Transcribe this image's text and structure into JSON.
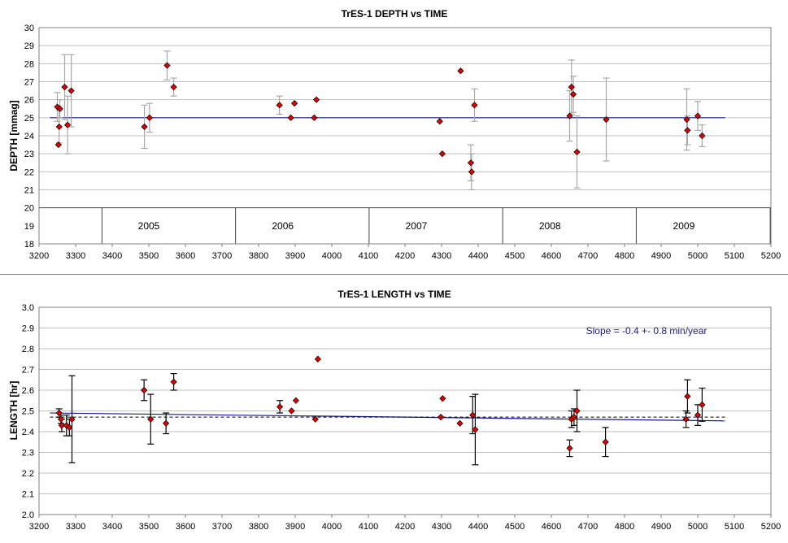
{
  "chart_data": [
    {
      "type": "scatter",
      "title": "TrES-1 DEPTH vs TIME",
      "ylabel": "DEPTH [mmag]",
      "xlim": [
        3200,
        5200
      ],
      "ylim": [
        18,
        30
      ],
      "xticks": [
        3200,
        3300,
        3400,
        3500,
        3600,
        3700,
        3800,
        3900,
        4000,
        4100,
        4200,
        4300,
        4400,
        4500,
        4600,
        4700,
        4800,
        4900,
        5000,
        5100,
        5200
      ],
      "yticks": [
        18,
        19,
        20,
        21,
        22,
        23,
        24,
        25,
        26,
        27,
        28,
        29,
        30
      ],
      "grid": true,
      "year_labels": [
        "2005",
        "2006",
        "2007",
        "2008",
        "2009"
      ],
      "year_label_x": [
        3500,
        3866,
        4231,
        4596,
        4962
      ],
      "year_dividers": [
        3372,
        3737,
        4102,
        4467,
        4832,
        5198
      ],
      "points": [
        {
          "x": 3250,
          "y": 25.6,
          "err": 0.8
        },
        {
          "x": 3253,
          "y": 23.5,
          "err": 0
        },
        {
          "x": 3255,
          "y": 24.5,
          "err": 0.9
        },
        {
          "x": 3257,
          "y": 25.5,
          "err": 0.5
        },
        {
          "x": 3270,
          "y": 26.7,
          "err": 1.8
        },
        {
          "x": 3278,
          "y": 24.6,
          "err": 1.6
        },
        {
          "x": 3288,
          "y": 26.5,
          "err": 2.0
        },
        {
          "x": 3488,
          "y": 24.5,
          "err": 1.2
        },
        {
          "x": 3502,
          "y": 25.0,
          "err": 0.8
        },
        {
          "x": 3550,
          "y": 27.9,
          "err": 0.8
        },
        {
          "x": 3568,
          "y": 26.7,
          "err": 0.5
        },
        {
          "x": 3857,
          "y": 25.7,
          "err": 0.5
        },
        {
          "x": 3888,
          "y": 25.0,
          "err": 0
        },
        {
          "x": 3898,
          "y": 25.8,
          "err": 0
        },
        {
          "x": 3952,
          "y": 25.0,
          "err": 0
        },
        {
          "x": 3958,
          "y": 26.0,
          "err": 0
        },
        {
          "x": 4295,
          "y": 24.8,
          "err": 0
        },
        {
          "x": 4302,
          "y": 23.0,
          "err": 0
        },
        {
          "x": 4352,
          "y": 27.6,
          "err": 0
        },
        {
          "x": 4380,
          "y": 22.5,
          "err": 1.0
        },
        {
          "x": 4382,
          "y": 22.0,
          "err": 1.0
        },
        {
          "x": 4390,
          "y": 25.7,
          "err": 0.9
        },
        {
          "x": 4650,
          "y": 25.1,
          "err": 1.4
        },
        {
          "x": 4655,
          "y": 26.7,
          "err": 1.5
        },
        {
          "x": 4660,
          "y": 26.3,
          "err": 1.0
        },
        {
          "x": 4670,
          "y": 23.1,
          "err": 2.0
        },
        {
          "x": 4750,
          "y": 24.9,
          "err": 2.3
        },
        {
          "x": 4970,
          "y": 24.9,
          "err": 1.7
        },
        {
          "x": 4972,
          "y": 24.3,
          "err": 0.8
        },
        {
          "x": 5000,
          "y": 25.1,
          "err": 0.8
        },
        {
          "x": 5012,
          "y": 24.0,
          "err": 0.6
        }
      ],
      "fit": {
        "x": [
          3230,
          5075
        ],
        "y": [
          25.0,
          25.0
        ]
      }
    },
    {
      "type": "scatter",
      "title": "TrES-1 LENGTH vs TIME",
      "ylabel": "LENGTH [hr]",
      "annotation": "Slope = -0.4 +- 0.8 min/year",
      "xlim": [
        3200,
        5200
      ],
      "ylim": [
        2.0,
        3.0
      ],
      "xticks": [
        3200,
        3300,
        3400,
        3500,
        3600,
        3700,
        3800,
        3900,
        4000,
        4100,
        4200,
        4300,
        4400,
        4500,
        4600,
        4700,
        4800,
        4900,
        5000,
        5100,
        5200
      ],
      "yticks": [
        2.0,
        2.1,
        2.2,
        2.3,
        2.4,
        2.5,
        2.6,
        2.7,
        2.8,
        2.9,
        3.0
      ],
      "grid": true,
      "points": [
        {
          "x": 3255,
          "y": 2.49,
          "err": 0.02
        },
        {
          "x": 3260,
          "y": 2.46,
          "err": 0.02
        },
        {
          "x": 3262,
          "y": 2.43,
          "err": 0.03
        },
        {
          "x": 3275,
          "y": 2.43,
          "err": 0.05
        },
        {
          "x": 3283,
          "y": 2.42,
          "err": 0.04
        },
        {
          "x": 3290,
          "y": 2.46,
          "err": 0.21
        },
        {
          "x": 3487,
          "y": 2.6,
          "err": 0.05
        },
        {
          "x": 3505,
          "y": 2.46,
          "err": 0.12
        },
        {
          "x": 3547,
          "y": 2.44,
          "err": 0.05
        },
        {
          "x": 3568,
          "y": 2.64,
          "err": 0.04
        },
        {
          "x": 3858,
          "y": 2.52,
          "err": 0.03
        },
        {
          "x": 3890,
          "y": 2.5,
          "err": 0
        },
        {
          "x": 3902,
          "y": 2.55,
          "err": 0
        },
        {
          "x": 3955,
          "y": 2.46,
          "err": 0
        },
        {
          "x": 3962,
          "y": 2.75,
          "err": 0
        },
        {
          "x": 4298,
          "y": 2.47,
          "err": 0
        },
        {
          "x": 4303,
          "y": 2.56,
          "err": 0
        },
        {
          "x": 4350,
          "y": 2.44,
          "err": 0
        },
        {
          "x": 4385,
          "y": 2.48,
          "err": 0.09
        },
        {
          "x": 4392,
          "y": 2.41,
          "err": 0.17
        },
        {
          "x": 4650,
          "y": 2.32,
          "err": 0.04
        },
        {
          "x": 4655,
          "y": 2.46,
          "err": 0.04
        },
        {
          "x": 4662,
          "y": 2.47,
          "err": 0.04
        },
        {
          "x": 4670,
          "y": 2.5,
          "err": 0.1
        },
        {
          "x": 4748,
          "y": 2.35,
          "err": 0.07
        },
        {
          "x": 4968,
          "y": 2.46,
          "err": 0.04
        },
        {
          "x": 4972,
          "y": 2.57,
          "err": 0.08
        },
        {
          "x": 5000,
          "y": 2.48,
          "err": 0.05
        },
        {
          "x": 5012,
          "y": 2.53,
          "err": 0.08
        }
      ],
      "fit": {
        "x": [
          3230,
          5075
        ],
        "y": [
          2.49,
          2.452
        ]
      },
      "mean": {
        "x": [
          3230,
          5075
        ],
        "y": [
          2.47,
          2.47
        ]
      }
    }
  ]
}
